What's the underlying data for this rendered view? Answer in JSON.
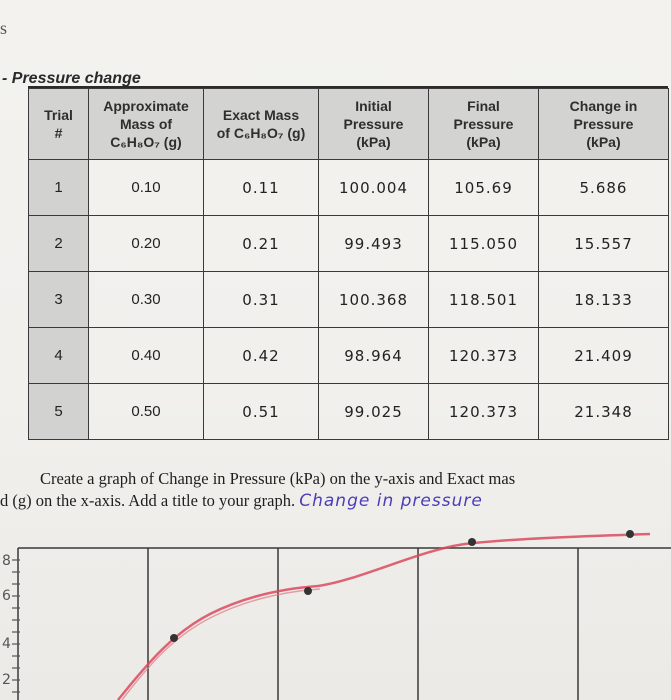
{
  "corner_mark": "s",
  "section_title": "Pressure change",
  "table": {
    "headers": [
      {
        "lines": [
          "Trial",
          "#"
        ]
      },
      {
        "lines": [
          "Approximate",
          "Mass of",
          "C₆H₈O₇ (g)"
        ]
      },
      {
        "lines": [
          "Exact Mass",
          "of C₆H₈O₇ (g)"
        ]
      },
      {
        "lines": [
          "Initial",
          "Pressure",
          "(kPa)"
        ]
      },
      {
        "lines": [
          "Final",
          "Pressure",
          "(kPa)"
        ]
      },
      {
        "lines": [
          "Change in",
          "Pressure",
          "(kPa)"
        ]
      }
    ],
    "rows": [
      {
        "trial": "1",
        "approx": "0.10",
        "exact": "0.11",
        "initial": "100.004",
        "final": "105.69",
        "change": "5.686"
      },
      {
        "trial": "2",
        "approx": "0.20",
        "exact": "0.21",
        "initial": "99.493",
        "final": "115.050",
        "change": "15.557"
      },
      {
        "trial": "3",
        "approx": "0.30",
        "exact": "0.31",
        "initial": "100.368",
        "final": "118.501",
        "change": "18.133"
      },
      {
        "trial": "4",
        "approx": "0.40",
        "exact": "0.42",
        "initial": "98.964",
        "final": "120.373",
        "change": "21.409"
      },
      {
        "trial": "5",
        "approx": "0.50",
        "exact": "0.51",
        "initial": "99.025",
        "final": "120.373",
        "change": "21.348"
      }
    ]
  },
  "instructions": {
    "line1": "Create a graph of Change in Pressure (kPa) on the y-axis and Exact mas",
    "line2": "(g) on the x-axis. Add a title to your graph.",
    "line2_prefix": "d",
    "handwritten_title": "Change  in  pressure"
  },
  "graph": {
    "y_tick_labels": [
      "8",
      "6",
      "4",
      "2"
    ],
    "colors": {
      "curve": "#d94a5e",
      "grid": "#3a3a3a",
      "ink": "#4a3db8",
      "point": "#333333"
    }
  }
}
